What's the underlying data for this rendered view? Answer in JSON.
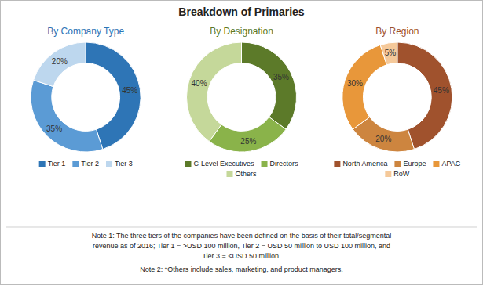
{
  "chart_data": [
    {
      "type": "pie",
      "title": "Breakdown of Primaries",
      "subtitle": "By Company Type",
      "categories": [
        "Tier 1",
        "Tier 2",
        "Tier 3"
      ],
      "values": [
        45,
        35,
        20
      ],
      "value_labels": [
        "45%",
        "35%",
        "20%"
      ],
      "colors": [
        "#2E75B6",
        "#5B9BD5",
        "#BDD7EE"
      ],
      "data_labels": true,
      "legend": "bottom",
      "annotations": [
        "Note 1: The three tiers of the companies have been defined on the basis of their total/segmental",
        "revenue as of 2016; Tier 1 = >USD 100 million, Tier 2 = USD 50 million to USD 100 million, and",
        "Tier 3 = <USD 50 million.",
        "Note 2: *Others include sales, marketing, and product managers."
      ]
    },
    {
      "type": "pie",
      "subtitle": "By Designation",
      "categories": [
        "C-Level Executives",
        "Directors",
        "Others"
      ],
      "values": [
        35,
        25,
        40
      ],
      "value_labels": [
        "35%",
        "25%",
        "40%"
      ],
      "colors": [
        "#5C7A29",
        "#8AB34A",
        "#C5D89A"
      ],
      "data_labels": true,
      "legend": "bottom"
    },
    {
      "type": "pie",
      "subtitle": "By Region",
      "categories": [
        "North America",
        "Europe",
        "APAC",
        "RoW"
      ],
      "values": [
        45,
        20,
        30,
        5
      ],
      "value_labels": [
        "45%",
        "20%",
        "30%",
        "5%"
      ],
      "colors": [
        "#A0522D",
        "#CD853F",
        "#E8973A",
        "#F5C99A"
      ],
      "data_labels": true,
      "legend": "bottom"
    }
  ]
}
